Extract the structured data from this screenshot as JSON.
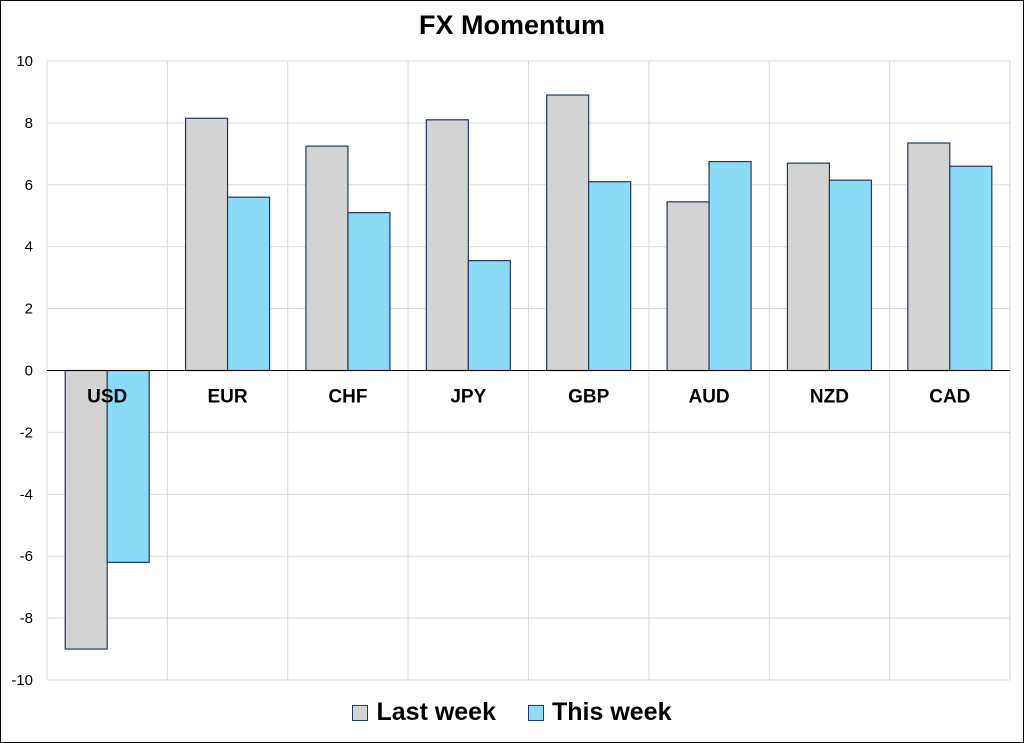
{
  "chart_data": {
    "type": "bar",
    "title": "FX Momentum",
    "xlabel": "",
    "ylabel": "",
    "categories": [
      "USD",
      "EUR",
      "CHF",
      "JPY",
      "GBP",
      "AUD",
      "NZD",
      "CAD"
    ],
    "series": [
      {
        "name": "Last week",
        "values": [
          -9.0,
          8.15,
          7.25,
          8.1,
          8.9,
          5.45,
          6.7,
          7.35
        ],
        "color": "#d3d3d3"
      },
      {
        "name": "This week",
        "values": [
          -6.2,
          5.6,
          5.1,
          3.55,
          6.1,
          6.75,
          6.15,
          6.6
        ],
        "color": "#8bdaf7"
      }
    ],
    "ylim": [
      -10,
      10
    ],
    "yticks": [
      -10,
      -8,
      -6,
      -4,
      -2,
      0,
      2,
      4,
      6,
      8,
      10
    ],
    "grid": true,
    "legend_position": "bottom",
    "bar_edge_color": "#1f3864"
  }
}
